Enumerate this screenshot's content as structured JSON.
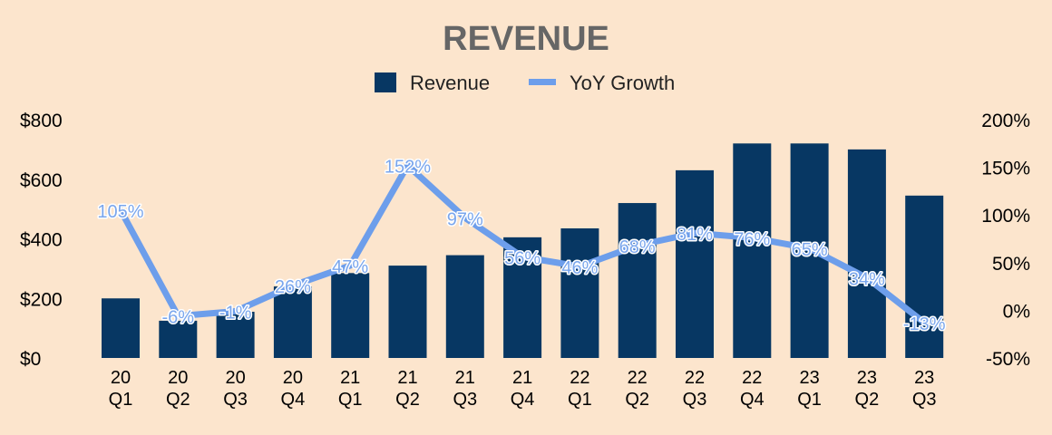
{
  "chart_data": {
    "type": "bar",
    "title": "REVENUE",
    "categories": [
      [
        "20",
        "Q1"
      ],
      [
        "20",
        "Q2"
      ],
      [
        "20",
        "Q3"
      ],
      [
        "20",
        "Q4"
      ],
      [
        "21",
        "Q1"
      ],
      [
        "21",
        "Q2"
      ],
      [
        "21",
        "Q3"
      ],
      [
        "21",
        "Q4"
      ],
      [
        "22",
        "Q1"
      ],
      [
        "22",
        "Q2"
      ],
      [
        "22",
        "Q3"
      ],
      [
        "22",
        "Q4"
      ],
      [
        "23",
        "Q1"
      ],
      [
        "23",
        "Q2"
      ],
      [
        "23",
        "Q3"
      ]
    ],
    "series": [
      {
        "name": "Revenue",
        "type": "bar",
        "axis": "left",
        "color": "#073763",
        "values": [
          200,
          125,
          155,
          240,
          285,
          310,
          345,
          405,
          435,
          520,
          630,
          720,
          720,
          700,
          545
        ]
      },
      {
        "name": "YoY Growth",
        "type": "line",
        "axis": "right",
        "color": "#6d9eeb",
        "values": [
          105,
          -6,
          -1,
          26,
          47,
          152,
          97,
          56,
          46,
          68,
          81,
          76,
          65,
          34,
          -13
        ],
        "labels": [
          "105%",
          "-6%",
          "-1%",
          "26%",
          "47%",
          "152%",
          "97%",
          "56%",
          "46%",
          "68%",
          "81%",
          "76%",
          "65%",
          "34%",
          "-13%"
        ]
      }
    ],
    "y_left": {
      "range": [
        0,
        800
      ],
      "ticks": [
        0,
        200,
        400,
        600,
        800
      ],
      "tick_labels": [
        "$0",
        "$200",
        "$400",
        "$600",
        "$800"
      ]
    },
    "y_right": {
      "range": [
        -50,
        200
      ],
      "ticks": [
        -50,
        0,
        50,
        100,
        150,
        200
      ],
      "tick_labels": [
        "-50%",
        "0%",
        "50%",
        "100%",
        "150%",
        "200%"
      ]
    },
    "grid": false,
    "legend": "top-center"
  }
}
